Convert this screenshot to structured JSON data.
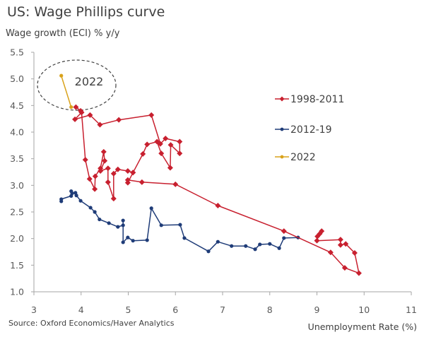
{
  "chart_data": {
    "type": "line",
    "title": "US: Wage Phillips curve",
    "ylabel": "Wage growth (ECI) % y/y",
    "xlabel": "Unemployment Rate (%)",
    "source": "Source: Oxford Economics/Haver Analytics",
    "xlim": [
      3,
      11
    ],
    "ylim": [
      1.0,
      5.5
    ],
    "xticks": [
      "3",
      "4",
      "5",
      "6",
      "7",
      "8",
      "9",
      "10",
      "11"
    ],
    "yticks": [
      "1.0",
      "1.5",
      "2.0",
      "2.5",
      "3.0",
      "3.5",
      "4.0",
      "4.5",
      "5.0",
      "5.5"
    ],
    "grid": false,
    "legend_position": "right",
    "annotation": {
      "text": "2022",
      "center": [
        4.0,
        4.85
      ]
    },
    "series": [
      {
        "name": "1998-2011",
        "color": "#c8202f",
        "marker": "diamond",
        "points": [
          [
            3.89,
            4.47
          ],
          [
            3.99,
            4.4
          ],
          [
            4.01,
            4.37
          ],
          [
            3.87,
            4.24
          ],
          [
            4.19,
            4.32
          ],
          [
            4.4,
            4.14
          ],
          [
            4.8,
            4.23
          ],
          [
            5.49,
            4.32
          ],
          [
            5.68,
            3.78
          ],
          [
            5.79,
            3.88
          ],
          [
            6.09,
            3.82
          ],
          [
            6.09,
            3.6
          ],
          [
            5.9,
            3.76
          ],
          [
            5.89,
            3.33
          ],
          [
            5.7,
            3.6
          ],
          [
            5.61,
            3.82
          ],
          [
            5.4,
            3.77
          ],
          [
            5.31,
            3.59
          ],
          [
            5.1,
            3.24
          ],
          [
            4.99,
            3.05
          ],
          [
            4.99,
            3.1
          ],
          [
            5.29,
            3.06
          ],
          [
            6.0,
            3.02
          ],
          [
            6.9,
            2.62
          ],
          [
            8.3,
            2.14
          ],
          [
            9.29,
            1.74
          ],
          [
            9.59,
            1.45
          ],
          [
            9.89,
            1.35
          ],
          [
            9.8,
            1.73
          ],
          [
            9.61,
            1.9
          ],
          [
            9.5,
            1.88
          ],
          [
            9.5,
            1.98
          ],
          [
            9.0,
            1.96
          ],
          [
            9.01,
            2.04
          ],
          [
            9.1,
            2.14
          ],
          [
            9.06,
            2.09
          ]
        ],
        "points_b": [
          [
            4.01,
            4.37
          ],
          [
            4.09,
            3.48
          ],
          [
            4.18,
            3.12
          ],
          [
            4.29,
            2.93
          ],
          [
            4.3,
            3.17
          ],
          [
            4.41,
            3.32
          ],
          [
            4.48,
            3.63
          ],
          [
            4.5,
            3.46
          ],
          [
            4.41,
            3.27
          ],
          [
            4.57,
            3.32
          ],
          [
            4.57,
            3.06
          ],
          [
            4.69,
            2.75
          ],
          [
            4.69,
            3.22
          ],
          [
            4.78,
            3.3
          ],
          [
            4.99,
            3.27
          ],
          [
            5.1,
            3.24
          ]
        ]
      },
      {
        "name": "2012-19",
        "color": "#1f3c78",
        "marker": "circle",
        "points": [
          [
            3.58,
            2.7
          ],
          [
            3.58,
            2.74
          ],
          [
            3.79,
            2.8
          ],
          [
            3.79,
            2.89
          ],
          [
            3.81,
            2.85
          ],
          [
            3.88,
            2.86
          ],
          [
            3.9,
            2.81
          ],
          [
            3.99,
            2.71
          ],
          [
            4.2,
            2.58
          ],
          [
            4.29,
            2.5
          ],
          [
            4.39,
            2.36
          ],
          [
            4.59,
            2.29
          ],
          [
            4.78,
            2.22
          ],
          [
            4.89,
            2.25
          ],
          [
            4.89,
            2.34
          ],
          [
            4.89,
            1.93
          ],
          [
            4.99,
            2.02
          ],
          [
            5.1,
            1.96
          ],
          [
            5.4,
            1.97
          ],
          [
            5.49,
            2.57
          ],
          [
            5.7,
            2.25
          ],
          [
            6.1,
            2.26
          ],
          [
            6.19,
            2.01
          ],
          [
            6.7,
            1.76
          ],
          [
            6.9,
            1.94
          ],
          [
            7.19,
            1.86
          ],
          [
            7.49,
            1.86
          ],
          [
            7.69,
            1.8
          ],
          [
            7.79,
            1.89
          ],
          [
            8.0,
            1.9
          ],
          [
            8.2,
            1.82
          ],
          [
            8.3,
            2.01
          ],
          [
            8.6,
            2.02
          ]
        ]
      },
      {
        "name": "2022",
        "color": "#d9a21b",
        "marker": "circle",
        "points": [
          [
            3.58,
            5.06
          ],
          [
            3.79,
            4.47
          ]
        ]
      }
    ]
  }
}
